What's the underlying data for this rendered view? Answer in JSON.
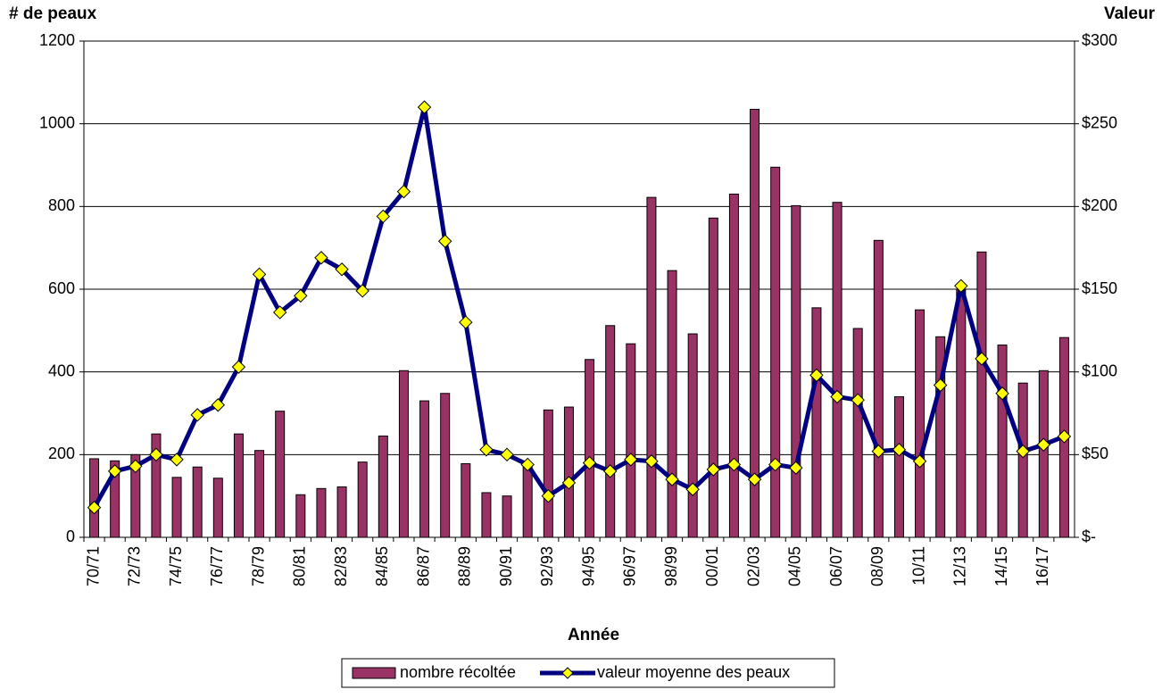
{
  "chart_data": {
    "type": "bar-line",
    "ylabel": "# de peaux",
    "y2label": "Valeur",
    "xlabel": "Année",
    "categories": [
      "70/71",
      null,
      "72/73",
      null,
      "74/75",
      null,
      "76/77",
      null,
      "78/79",
      null,
      "80/81",
      null,
      "82/83",
      null,
      "84/85",
      null,
      "86/87",
      null,
      "88/89",
      null,
      "90/91",
      null,
      "92/93",
      null,
      "94/95",
      null,
      "96/97",
      null,
      "98/99",
      null,
      "00/01",
      null,
      "02/03",
      null,
      "04/05",
      null,
      "06/07",
      null,
      "08/09",
      null,
      "10/11",
      null,
      "12/13",
      null,
      "14/15",
      null,
      "16/17",
      null
    ],
    "series": [
      {
        "name": "nombre récoltée",
        "color": "#993366",
        "values": [
          190,
          185,
          200,
          250,
          145,
          170,
          143,
          250,
          210,
          305,
          103,
          118,
          122,
          182,
          245,
          403,
          330,
          348,
          178,
          108,
          100,
          172,
          308,
          315,
          430,
          512,
          468,
          822,
          645,
          492,
          772,
          830,
          1035,
          895,
          802,
          555,
          810,
          505,
          718,
          340,
          550,
          485,
          600,
          690,
          465,
          373,
          403,
          483
        ]
      },
      {
        "name": "valeur moyenne des peaux",
        "color": "#000080",
        "marker_color": "#ffff00",
        "axis": "y2",
        "values": [
          18,
          40,
          43,
          50,
          47,
          74,
          80,
          103,
          159,
          136,
          146,
          169,
          162,
          149,
          194,
          209,
          260,
          179,
          130,
          53,
          50,
          44,
          25,
          33,
          45,
          40,
          47,
          46,
          35,
          29,
          41,
          44,
          35,
          44,
          42,
          98,
          85,
          83,
          52,
          53,
          46,
          92,
          152,
          108,
          87,
          52,
          56,
          61
        ]
      }
    ],
    "ylim": [
      0,
      1200
    ],
    "yticks": [
      0,
      200,
      400,
      600,
      800,
      1000,
      1200
    ],
    "y2lim": [
      0,
      300
    ],
    "y2ticks": [
      {
        "value": 0,
        "label": "$-"
      },
      {
        "value": 50,
        "label": "$50"
      },
      {
        "value": 100,
        "label": "$100"
      },
      {
        "value": 150,
        "label": "$150"
      },
      {
        "value": 200,
        "label": "$200"
      },
      {
        "value": 250,
        "label": "$250"
      },
      {
        "value": 300,
        "label": "$300"
      }
    ],
    "grid": true,
    "legend": "bottom"
  }
}
